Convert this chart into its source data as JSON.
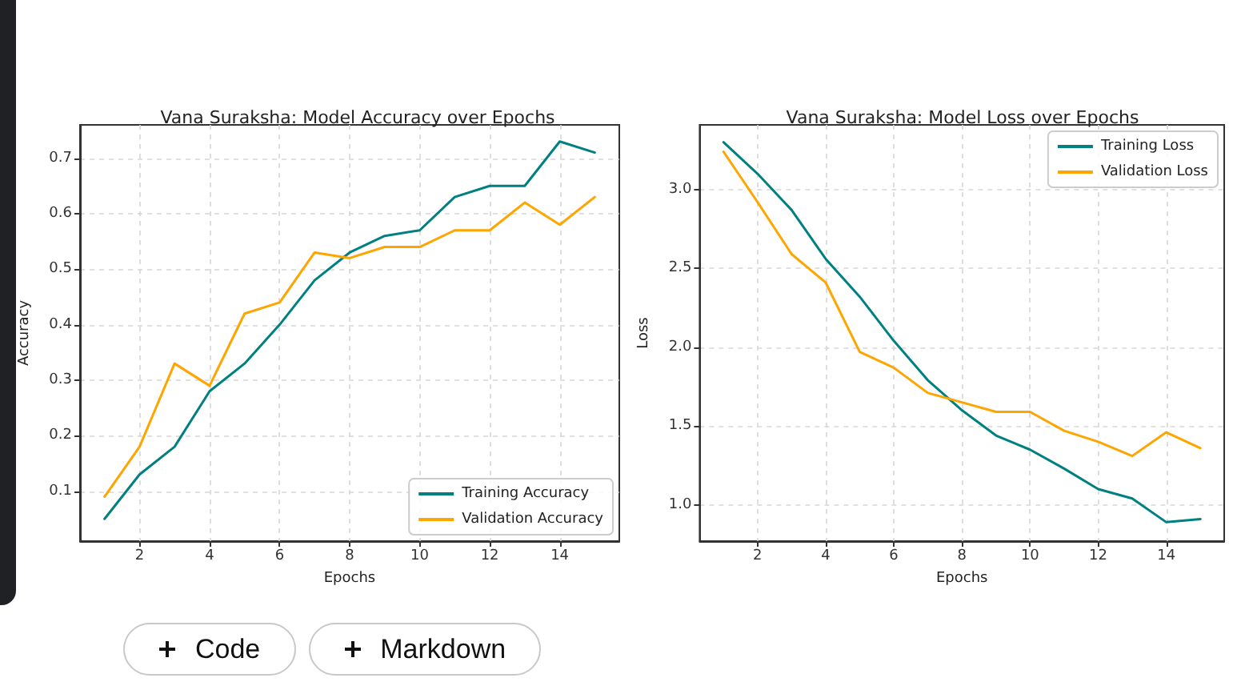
{
  "chart_data": [
    {
      "type": "line",
      "title": "Vana Suraksha: Model Accuracy over Epochs",
      "xlabel": "Epochs",
      "ylabel": "Accuracy",
      "x": [
        1,
        2,
        3,
        4,
        5,
        6,
        7,
        8,
        9,
        10,
        11,
        12,
        13,
        14,
        15
      ],
      "series": [
        {
          "name": "Training Accuracy",
          "color": "#008080",
          "values": [
            0.05,
            0.13,
            0.18,
            0.28,
            0.33,
            0.4,
            0.48,
            0.53,
            0.56,
            0.57,
            0.63,
            0.65,
            0.65,
            0.73,
            0.71
          ]
        },
        {
          "name": "Validation Accuracy",
          "color": "#ffa500",
          "values": [
            0.09,
            0.18,
            0.33,
            0.29,
            0.42,
            0.44,
            0.53,
            0.52,
            0.54,
            0.54,
            0.57,
            0.57,
            0.62,
            0.58,
            0.63
          ]
        }
      ],
      "xlim": [
        0.3,
        15.7
      ],
      "ylim": [
        0.01,
        0.76
      ],
      "xticks": [
        2,
        4,
        6,
        8,
        10,
        12,
        14
      ],
      "yticks": [
        0.1,
        0.2,
        0.3,
        0.4,
        0.5,
        0.6,
        0.7
      ],
      "grid": true,
      "legend": "bottom right"
    },
    {
      "type": "line",
      "title": "Vana Suraksha: Model Loss over Epochs",
      "xlabel": "Epochs",
      "ylabel": "Loss",
      "x": [
        1,
        2,
        3,
        4,
        5,
        6,
        7,
        8,
        9,
        10,
        11,
        12,
        13,
        14,
        15
      ],
      "series": [
        {
          "name": "Training Loss",
          "color": "#008080",
          "values": [
            3.3,
            3.1,
            2.87,
            2.56,
            2.32,
            2.04,
            1.79,
            1.6,
            1.44,
            1.35,
            1.23,
            1.1,
            1.04,
            0.89,
            0.91
          ]
        },
        {
          "name": "Validation Loss",
          "color": "#ffa500",
          "values": [
            3.24,
            2.92,
            2.59,
            2.41,
            1.97,
            1.87,
            1.71,
            1.65,
            1.59,
            1.59,
            1.47,
            1.4,
            1.31,
            1.46,
            1.36
          ]
        }
      ],
      "xlim": [
        0.3,
        15.7
      ],
      "ylim": [
        0.77,
        3.41
      ],
      "xticks": [
        2,
        4,
        6,
        8,
        10,
        12,
        14
      ],
      "yticks": [
        {
          "value": 1,
          "label": "1.0"
        },
        1.5,
        {
          "value": 2,
          "label": "2.0"
        },
        2.5,
        {
          "value": 3,
          "label": "3.0"
        }
      ],
      "grid": true,
      "legend": "top right"
    },
    {
      "type": "other",
      "annotations": [
        "Code",
        "Markdown"
      ]
    }
  ]
}
